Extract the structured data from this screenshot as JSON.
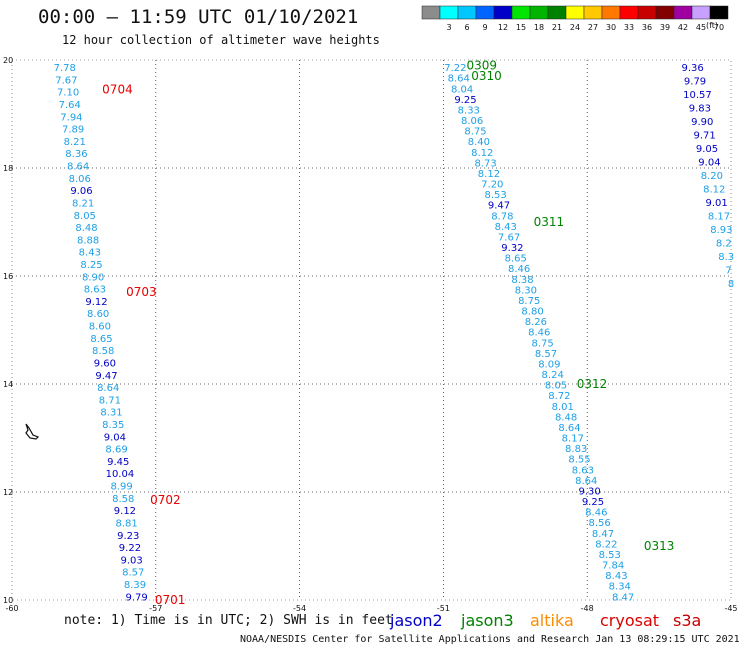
{
  "header": {
    "title": "00:00 – 11:59 UTC 01/10/2021",
    "subtitle": "12 hour collection of altimeter wave heights"
  },
  "colorbar": {
    "unit": "(ft)",
    "bins": [
      {
        "label": "",
        "color": "#8c8c8c"
      },
      {
        "label": "3",
        "color": "#00ffff"
      },
      {
        "label": "6",
        "color": "#00c8ff"
      },
      {
        "label": "9",
        "color": "#0064ff"
      },
      {
        "label": "12",
        "color": "#0000c8"
      },
      {
        "label": "15",
        "color": "#00e600"
      },
      {
        "label": "18",
        "color": "#00b400"
      },
      {
        "label": "21",
        "color": "#008200"
      },
      {
        "label": "24",
        "color": "#ffff00"
      },
      {
        "label": "27",
        "color": "#ffc800"
      },
      {
        "label": "30",
        "color": "#ff7800"
      },
      {
        "label": "33",
        "color": "#ff0000"
      },
      {
        "label": "36",
        "color": "#c80000"
      },
      {
        "label": "39",
        "color": "#820000"
      },
      {
        "label": "42",
        "color": "#a000a0"
      },
      {
        "label": "45",
        "color": "#c8a0ff"
      },
      {
        "label": "70",
        "color": "#000000"
      }
    ]
  },
  "note": "note: 1) Time is in UTC; 2) SWH is in feet",
  "satellites": [
    {
      "name": "jason2",
      "color": "#0000c8"
    },
    {
      "name": "jason3",
      "color": "#008200"
    },
    {
      "name": "altika",
      "color": "#ff8c00"
    },
    {
      "name": "cryosat",
      "color": "#dd0000"
    },
    {
      "name": "s3a",
      "color": "#c80000"
    }
  ],
  "footer": "NOAA/NESDIS Center for Satellite Applications and Research    Jan 13 08:29:15 UTC 2021",
  "colors": {
    "light": "#1ea0e6",
    "dark": "#0000c8",
    "cryosat_time": "#e60000",
    "jason3_time": "#008200"
  },
  "chart_data": {
    "type": "scatter",
    "xlim": [
      -60,
      -45
    ],
    "ylim": [
      10,
      20
    ],
    "x_ticks": [
      "-60",
      "-57",
      "-54",
      "-51",
      "-48",
      "-45"
    ],
    "y_ticks": [
      "10",
      "12",
      "14",
      "16",
      "18",
      "20"
    ],
    "grid": true,
    "tracks": [
      {
        "satellite": "cryosat",
        "lon_top": -58.9,
        "lon_bottom": -57.4,
        "lat_top": 19.85,
        "lat_bottom": 10.05,
        "values": [
          "7.78",
          "7.67",
          "7.10",
          "7.64",
          "7.94",
          "7.89",
          "8.21",
          "8.36",
          "8.64",
          "8.06",
          "9.06",
          "8.21",
          "8.05",
          "8.48",
          "8.88",
          "8.43",
          "8.25",
          "8.90",
          "8.63",
          "9.12",
          "8.60",
          "8.60",
          "8.65",
          "8.58",
          "9.60",
          "9.47",
          "8.64",
          "8.71",
          "8.31",
          "8.35",
          "9.04",
          "8.69",
          "9.45",
          "10.04",
          "8.99",
          "8.58",
          "9.12",
          "8.81",
          "9.23",
          "9.22",
          "9.03",
          "8.57",
          "8.39",
          "9.79"
        ],
        "time_labels": [
          {
            "text": "0704",
            "lat": 19.45,
            "lon": -57.8
          },
          {
            "text": "0703",
            "lat": 15.7,
            "lon": -57.3
          },
          {
            "text": "0702",
            "lat": 11.85,
            "lon": -56.8
          },
          {
            "text": "0701",
            "lat": 10.0,
            "lon": -56.7
          }
        ]
      },
      {
        "satellite": "jason3",
        "lon_top": -50.75,
        "lon_bottom": -47.25,
        "lat_top": 19.85,
        "lat_bottom": 10.05,
        "values": [
          "7.22",
          "8.64",
          "8.04",
          "9.25",
          "8.33",
          "8.06",
          "8.75",
          "8.40",
          "8.12",
          "8.73",
          "8.12",
          "7.20",
          "8.53",
          "9.47",
          "8.78",
          "8.43",
          "7.67",
          "9.32",
          "8.65",
          "8.46",
          "8.38",
          "8.30",
          "8.75",
          "8.80",
          "8.26",
          "8.46",
          "8.75",
          "8.57",
          "8.09",
          "8.24",
          "8.05",
          "8.72",
          "8.01",
          "8.48",
          "8.64",
          "8.17",
          "8.83",
          "8.55",
          "8.63",
          "8.64",
          "9.30",
          "9.25",
          "8.46",
          "8.56",
          "8.47",
          "8.22",
          "8.53",
          "7.84",
          "8.43",
          "8.34",
          "8.47"
        ],
        "time_labels": [
          {
            "text": "0309",
            "lat": 19.9,
            "lon": -50.2
          },
          {
            "text": "0310",
            "lat": 19.7,
            "lon": -50.1
          },
          {
            "text": "0311",
            "lat": 17.0,
            "lon": -48.8
          },
          {
            "text": "0312",
            "lat": 14.0,
            "lon": -47.9
          },
          {
            "text": "0313",
            "lat": 11.0,
            "lon": -46.5
          }
        ]
      },
      {
        "satellite": "jason3",
        "lon_top": -45.8,
        "lon_bottom": -45.0,
        "lat_top": 19.85,
        "lat_bottom": 15.85,
        "values": [
          "9.36",
          "9.79",
          "10.57",
          "9.83",
          "9.90",
          "9.71",
          "9.05",
          "9.04",
          "8.20",
          "8.12",
          "9.01",
          "8.17",
          "8.93",
          "8.2",
          "8.3",
          "7",
          "8"
        ]
      }
    ]
  }
}
